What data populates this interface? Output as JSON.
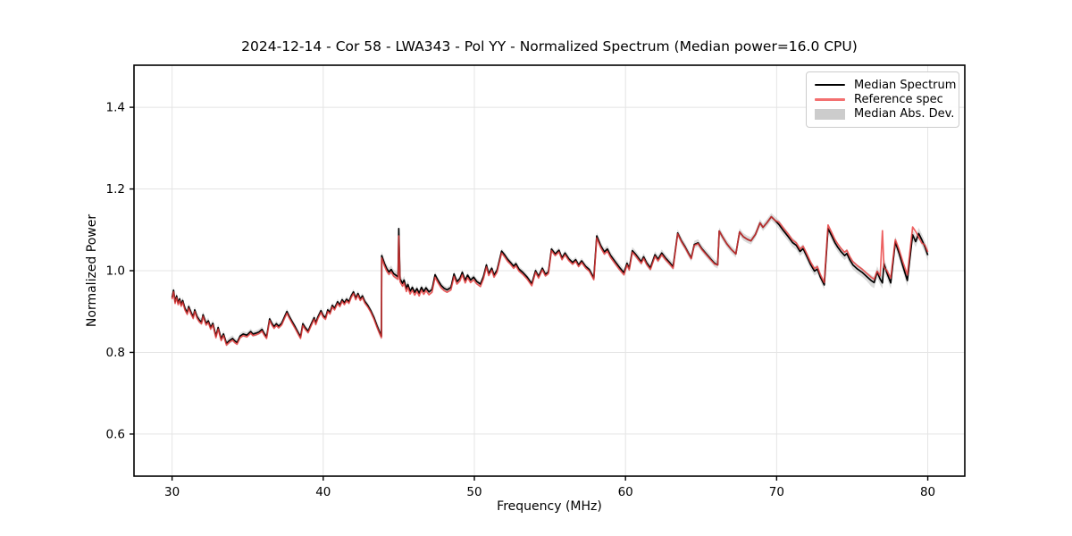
{
  "title": "2024-12-14 - Cor 58 - LWA343 - Pol YY - Normalized Spectrum (Median power=16.0 CPU)",
  "axes": {
    "xlabel": "Frequency (MHz)",
    "ylabel": "Normalized Power"
  },
  "legend": {
    "position": "upper right",
    "items": [
      {
        "label": "Median Spectrum",
        "type": "line",
        "color": "#000000"
      },
      {
        "label": "Reference spec",
        "type": "line",
        "color": "#f37070"
      },
      {
        "label": "Median Abs. Dev.",
        "type": "patch",
        "color": "#cccccc"
      }
    ]
  },
  "chart_data": {
    "type": "line",
    "title": "2024-12-14 - Cor 58 - LWA343 - Pol YY - Normalized Spectrum (Median power=16.0 CPU)",
    "xlabel": "Frequency (MHz)",
    "ylabel": "Normalized Power",
    "xlim": [
      27.48,
      82.45
    ],
    "ylim": [
      0.497,
      1.503
    ],
    "xticks": [
      30,
      40,
      50,
      60,
      70,
      80
    ],
    "yticks": [
      0.6,
      0.8,
      1.0,
      1.2,
      1.4
    ],
    "grid": true,
    "legend_position": "upper right",
    "colors": {
      "median": "#000000",
      "reference": "#e83a3a",
      "mad_band": "#bdbdbd",
      "grid": "#e4e4e4"
    },
    "series_names": [
      "Median Spectrum",
      "Reference spec",
      "Median Abs. Dev."
    ],
    "points_format": [
      "freq_mhz",
      "median_power",
      "reference_power"
    ],
    "points": [
      [
        30.0,
        0.934,
        0.93
      ],
      [
        30.1,
        0.952,
        0.948
      ],
      [
        30.2,
        0.924,
        0.92
      ],
      [
        30.3,
        0.938,
        0.934
      ],
      [
        30.4,
        0.921,
        0.917
      ],
      [
        30.5,
        0.931,
        0.927
      ],
      [
        30.6,
        0.917,
        0.913
      ],
      [
        30.7,
        0.927,
        0.923
      ],
      [
        30.85,
        0.908,
        0.904
      ],
      [
        31.0,
        0.897,
        0.893
      ],
      [
        31.1,
        0.912,
        0.908
      ],
      [
        31.25,
        0.898,
        0.894
      ],
      [
        31.4,
        0.887,
        0.883
      ],
      [
        31.5,
        0.904,
        0.9
      ],
      [
        31.65,
        0.888,
        0.884
      ],
      [
        31.8,
        0.879,
        0.875
      ],
      [
        31.95,
        0.874,
        0.87
      ],
      [
        32.05,
        0.892,
        0.888
      ],
      [
        32.25,
        0.871,
        0.867
      ],
      [
        32.4,
        0.877,
        0.873
      ],
      [
        32.55,
        0.861,
        0.857
      ],
      [
        32.7,
        0.871,
        0.867
      ],
      [
        32.9,
        0.84,
        0.836
      ],
      [
        33.05,
        0.861,
        0.857
      ],
      [
        33.25,
        0.833,
        0.829
      ],
      [
        33.4,
        0.845,
        0.841
      ],
      [
        33.6,
        0.822,
        0.818
      ],
      [
        33.8,
        0.829,
        0.825
      ],
      [
        34.0,
        0.834,
        0.83
      ],
      [
        34.15,
        0.828,
        0.824
      ],
      [
        34.3,
        0.824,
        0.82
      ],
      [
        34.5,
        0.84,
        0.836
      ],
      [
        34.7,
        0.845,
        0.841
      ],
      [
        34.95,
        0.842,
        0.838
      ],
      [
        35.2,
        0.851,
        0.847
      ],
      [
        35.35,
        0.845,
        0.841
      ],
      [
        35.55,
        0.847,
        0.843
      ],
      [
        35.75,
        0.85,
        0.846
      ],
      [
        35.95,
        0.856,
        0.852
      ],
      [
        36.1,
        0.846,
        0.842
      ],
      [
        36.25,
        0.838,
        0.834
      ],
      [
        36.45,
        0.882,
        0.878
      ],
      [
        36.6,
        0.871,
        0.867
      ],
      [
        36.75,
        0.863,
        0.859
      ],
      [
        36.9,
        0.87,
        0.866
      ],
      [
        37.05,
        0.864,
        0.86
      ],
      [
        37.25,
        0.871,
        0.867
      ],
      [
        37.45,
        0.888,
        0.884
      ],
      [
        37.6,
        0.9,
        0.896
      ],
      [
        37.75,
        0.888,
        0.884
      ],
      [
        37.95,
        0.875,
        0.871
      ],
      [
        38.15,
        0.862,
        0.858
      ],
      [
        38.35,
        0.848,
        0.844
      ],
      [
        38.5,
        0.838,
        0.834
      ],
      [
        38.65,
        0.87,
        0.866
      ],
      [
        38.8,
        0.861,
        0.857
      ],
      [
        39.0,
        0.852,
        0.848
      ],
      [
        39.2,
        0.869,
        0.865
      ],
      [
        39.4,
        0.885,
        0.881
      ],
      [
        39.5,
        0.872,
        0.868
      ],
      [
        39.65,
        0.887,
        0.883
      ],
      [
        39.85,
        0.902,
        0.898
      ],
      [
        40.0,
        0.89,
        0.886
      ],
      [
        40.15,
        0.885,
        0.881
      ],
      [
        40.3,
        0.904,
        0.9
      ],
      [
        40.45,
        0.898,
        0.894
      ],
      [
        40.6,
        0.915,
        0.911
      ],
      [
        40.75,
        0.908,
        0.904
      ],
      [
        40.95,
        0.924,
        0.92
      ],
      [
        41.1,
        0.916,
        0.912
      ],
      [
        41.25,
        0.929,
        0.925
      ],
      [
        41.4,
        0.921,
        0.917
      ],
      [
        41.55,
        0.93,
        0.926
      ],
      [
        41.7,
        0.924,
        0.92
      ],
      [
        41.85,
        0.938,
        0.934
      ],
      [
        42.0,
        0.948,
        0.944
      ],
      [
        42.15,
        0.933,
        0.929
      ],
      [
        42.3,
        0.944,
        0.94
      ],
      [
        42.45,
        0.931,
        0.927
      ],
      [
        42.6,
        0.938,
        0.934
      ],
      [
        42.75,
        0.925,
        0.921
      ],
      [
        42.95,
        0.915,
        0.911
      ],
      [
        43.15,
        0.902,
        0.898
      ],
      [
        43.35,
        0.886,
        0.882
      ],
      [
        43.55,
        0.866,
        0.862
      ],
      [
        43.75,
        0.848,
        0.844
      ],
      [
        43.85,
        0.84,
        0.836
      ],
      [
        43.87,
        1.037,
        1.031
      ],
      [
        44.05,
        1.018,
        1.012
      ],
      [
        44.2,
        1.005,
        0.999
      ],
      [
        44.35,
        0.997,
        0.991
      ],
      [
        44.5,
        1.003,
        0.997
      ],
      [
        44.65,
        0.993,
        0.987
      ],
      [
        44.8,
        0.989,
        0.983
      ],
      [
        44.95,
        0.985,
        0.979
      ],
      [
        45.0,
        1.103,
        1.085
      ],
      [
        45.08,
        0.98,
        0.973
      ],
      [
        45.25,
        0.969,
        0.962
      ],
      [
        45.35,
        0.977,
        0.97
      ],
      [
        45.5,
        0.956,
        0.949
      ],
      [
        45.6,
        0.966,
        0.959
      ],
      [
        45.75,
        0.95,
        0.943
      ],
      [
        45.9,
        0.959,
        0.952
      ],
      [
        46.05,
        0.947,
        0.94
      ],
      [
        46.2,
        0.956,
        0.949
      ],
      [
        46.35,
        0.945,
        0.938
      ],
      [
        46.5,
        0.959,
        0.952
      ],
      [
        46.65,
        0.949,
        0.942
      ],
      [
        46.8,
        0.958,
        0.951
      ],
      [
        47.0,
        0.948,
        0.941
      ],
      [
        47.2,
        0.954,
        0.947
      ],
      [
        47.4,
        0.99,
        0.984
      ],
      [
        47.6,
        0.976,
        0.97
      ],
      [
        47.8,
        0.964,
        0.958
      ],
      [
        48.0,
        0.957,
        0.951
      ],
      [
        48.2,
        0.953,
        0.947
      ],
      [
        48.45,
        0.959,
        0.953
      ],
      [
        48.65,
        0.992,
        0.986
      ],
      [
        48.85,
        0.973,
        0.967
      ],
      [
        49.05,
        0.981,
        0.975
      ],
      [
        49.2,
        0.996,
        0.99
      ],
      [
        49.4,
        0.976,
        0.97
      ],
      [
        49.55,
        0.989,
        0.983
      ],
      [
        49.75,
        0.977,
        0.971
      ],
      [
        49.95,
        0.984,
        0.978
      ],
      [
        50.15,
        0.974,
        0.968
      ],
      [
        50.4,
        0.967,
        0.961
      ],
      [
        50.6,
        0.986,
        0.98
      ],
      [
        50.8,
        1.014,
        1.009
      ],
      [
        50.95,
        0.993,
        0.988
      ],
      [
        51.15,
        1.006,
        1.001
      ],
      [
        51.3,
        0.989,
        0.984
      ],
      [
        51.5,
        1.001,
        0.996
      ],
      [
        51.8,
        1.048,
        1.043
      ],
      [
        52.0,
        1.039,
        1.034
      ],
      [
        52.2,
        1.028,
        1.023
      ],
      [
        52.4,
        1.02,
        1.015
      ],
      [
        52.6,
        1.011,
        1.006
      ],
      [
        52.75,
        1.017,
        1.012
      ],
      [
        52.95,
        1.004,
        0.999
      ],
      [
        53.2,
        0.996,
        0.991
      ],
      [
        53.5,
        0.984,
        0.979
      ],
      [
        53.8,
        0.968,
        0.963
      ],
      [
        54.05,
        1.0,
        0.996
      ],
      [
        54.25,
        0.986,
        0.982
      ],
      [
        54.5,
        1.006,
        1.002
      ],
      [
        54.7,
        0.991,
        0.987
      ],
      [
        54.9,
        0.997,
        0.993
      ],
      [
        55.1,
        1.053,
        1.049
      ],
      [
        55.35,
        1.041,
        1.037
      ],
      [
        55.6,
        1.05,
        1.046
      ],
      [
        55.8,
        1.031,
        1.027
      ],
      [
        56.0,
        1.043,
        1.039
      ],
      [
        56.25,
        1.029,
        1.025
      ],
      [
        56.5,
        1.02,
        1.016
      ],
      [
        56.7,
        1.027,
        1.023
      ],
      [
        56.9,
        1.014,
        1.01
      ],
      [
        57.1,
        1.024,
        1.02
      ],
      [
        57.35,
        1.011,
        1.007
      ],
      [
        57.6,
        1.003,
        0.999
      ],
      [
        57.9,
        0.982,
        0.978
      ],
      [
        58.1,
        1.085,
        1.08
      ],
      [
        58.35,
        1.062,
        1.057
      ],
      [
        58.6,
        1.046,
        1.041
      ],
      [
        58.8,
        1.053,
        1.048
      ],
      [
        59.0,
        1.038,
        1.033
      ],
      [
        59.3,
        1.023,
        1.018
      ],
      [
        59.6,
        1.008,
        1.003
      ],
      [
        59.9,
        0.995,
        0.99
      ],
      [
        60.1,
        1.018,
        1.014
      ],
      [
        60.25,
        1.006,
        1.002
      ],
      [
        60.45,
        1.049,
        1.045
      ],
      [
        60.65,
        1.041,
        1.037
      ],
      [
        60.85,
        1.031,
        1.027
      ],
      [
        61.05,
        1.022,
        1.018
      ],
      [
        61.2,
        1.034,
        1.03
      ],
      [
        61.4,
        1.019,
        1.015
      ],
      [
        61.65,
        1.007,
        1.003
      ],
      [
        61.95,
        1.039,
        1.035
      ],
      [
        62.15,
        1.028,
        1.024
      ],
      [
        62.4,
        1.043,
        1.039
      ],
      [
        62.65,
        1.031,
        1.027
      ],
      [
        62.9,
        1.021,
        1.017
      ],
      [
        63.15,
        1.01,
        1.006
      ],
      [
        63.45,
        1.092,
        1.09
      ],
      [
        63.7,
        1.073,
        1.071
      ],
      [
        63.95,
        1.058,
        1.056
      ],
      [
        64.15,
        1.044,
        1.042
      ],
      [
        64.35,
        1.031,
        1.029
      ],
      [
        64.55,
        1.064,
        1.062
      ],
      [
        64.8,
        1.068,
        1.066
      ],
      [
        65.05,
        1.054,
        1.052
      ],
      [
        65.35,
        1.041,
        1.039
      ],
      [
        65.65,
        1.028,
        1.026
      ],
      [
        65.9,
        1.018,
        1.016
      ],
      [
        66.1,
        1.014,
        1.014
      ],
      [
        66.2,
        1.097,
        1.097
      ],
      [
        66.45,
        1.081,
        1.081
      ],
      [
        66.7,
        1.066,
        1.066
      ],
      [
        67.0,
        1.052,
        1.052
      ],
      [
        67.3,
        1.041,
        1.041
      ],
      [
        67.55,
        1.095,
        1.095
      ],
      [
        67.8,
        1.083,
        1.083
      ],
      [
        68.05,
        1.077,
        1.077
      ],
      [
        68.3,
        1.073,
        1.073
      ],
      [
        68.6,
        1.089,
        1.089
      ],
      [
        68.9,
        1.117,
        1.117
      ],
      [
        69.1,
        1.106,
        1.106
      ],
      [
        69.35,
        1.117,
        1.117
      ],
      [
        69.65,
        1.132,
        1.132
      ],
      [
        69.9,
        1.123,
        1.123
      ],
      [
        70.15,
        1.113,
        1.119
      ],
      [
        70.45,
        1.098,
        1.104
      ],
      [
        70.75,
        1.084,
        1.09
      ],
      [
        71.05,
        1.069,
        1.075
      ],
      [
        71.3,
        1.062,
        1.068
      ],
      [
        71.55,
        1.047,
        1.053
      ],
      [
        71.75,
        1.054,
        1.06
      ],
      [
        72.0,
        1.035,
        1.041
      ],
      [
        72.25,
        1.015,
        1.021
      ],
      [
        72.5,
        0.999,
        1.005
      ],
      [
        72.7,
        1.004,
        1.01
      ],
      [
        72.9,
        0.984,
        0.99
      ],
      [
        73.15,
        0.965,
        0.971
      ],
      [
        73.4,
        1.103,
        1.112
      ],
      [
        73.65,
        1.085,
        1.093
      ],
      [
        73.85,
        1.069,
        1.077
      ],
      [
        74.05,
        1.057,
        1.065
      ],
      [
        74.25,
        1.047,
        1.055
      ],
      [
        74.5,
        1.037,
        1.045
      ],
      [
        74.65,
        1.042,
        1.05
      ],
      [
        74.85,
        1.026,
        1.034
      ],
      [
        75.05,
        1.014,
        1.022
      ],
      [
        75.35,
        1.004,
        1.012
      ],
      [
        75.65,
        0.996,
        1.004
      ],
      [
        75.95,
        0.986,
        0.994
      ],
      [
        76.25,
        0.976,
        0.984
      ],
      [
        76.45,
        0.971,
        0.979
      ],
      [
        76.65,
        0.997,
        0.999
      ],
      [
        76.85,
        0.979,
        0.987
      ],
      [
        77.0,
        0.97,
        1.098
      ],
      [
        77.1,
        1.017,
        1.008
      ],
      [
        77.3,
        0.994,
        1.0
      ],
      [
        77.55,
        0.97,
        0.982
      ],
      [
        77.85,
        1.07,
        1.076
      ],
      [
        78.1,
        1.043,
        1.052
      ],
      [
        78.35,
        1.012,
        1.022
      ],
      [
        78.65,
        0.976,
        0.99
      ],
      [
        79.0,
        1.088,
        1.107
      ],
      [
        79.2,
        1.071,
        1.096
      ],
      [
        79.4,
        1.091,
        1.082
      ],
      [
        79.6,
        1.076,
        1.068
      ],
      [
        79.8,
        1.059,
        1.063
      ],
      [
        80.0,
        1.038,
        1.046
      ]
    ],
    "mad_segments": [
      [
        30.0,
        34.0,
        0.008
      ],
      [
        34.0,
        43.5,
        0.007
      ],
      [
        43.5,
        45.6,
        0.01
      ],
      [
        45.6,
        58.0,
        0.007
      ],
      [
        58.0,
        70.0,
        0.009
      ],
      [
        70.0,
        76.0,
        0.011
      ],
      [
        76.0,
        80.2,
        0.014
      ]
    ]
  }
}
